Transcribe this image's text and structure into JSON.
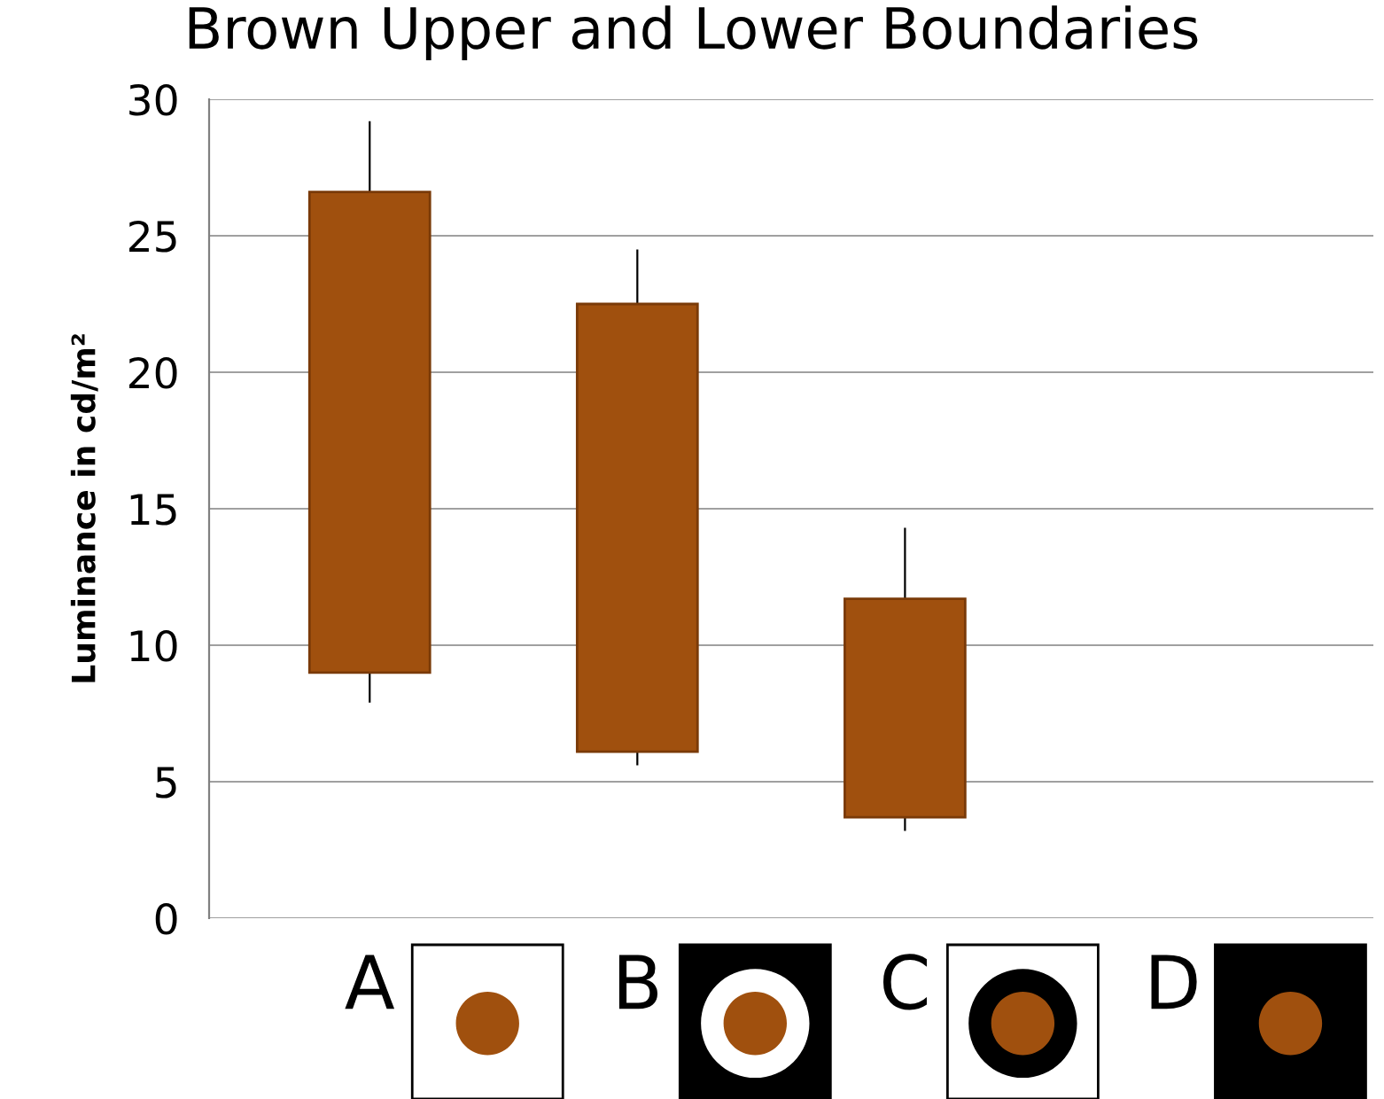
{
  "chart_data": {
    "type": "candlestick",
    "title": "Brown Upper and Lower Boundaries",
    "ylabel": "Luminance in cd/m²",
    "categories": [
      "A",
      "B",
      "C",
      "D"
    ],
    "ohlc": [
      [
        9.0,
        29.2,
        7.9,
        26.6
      ],
      [
        6.1,
        24.5,
        5.6,
        22.5
      ],
      [
        3.7,
        14.3,
        3.2,
        11.7
      ],
      null
    ],
    "color": "#a0500e",
    "ylim": [
      0,
      30
    ],
    "yticks": [
      0,
      5,
      10,
      15,
      20,
      25,
      30
    ],
    "grid": "y",
    "legend": false
  }
}
